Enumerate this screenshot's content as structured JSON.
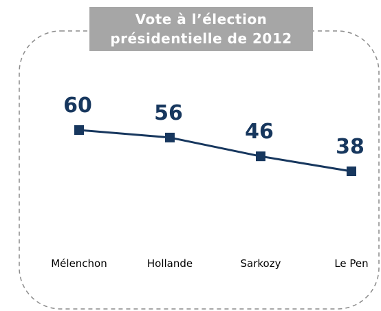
{
  "chart_data": {
    "type": "line",
    "title": "Vote à l’élection présidentielle de 2012",
    "categories": [
      "Mélenchon",
      "Hollande",
      "Sarkozy",
      "Le Pen"
    ],
    "values": [
      60,
      56,
      46,
      38
    ],
    "color": "#17375e"
  }
}
